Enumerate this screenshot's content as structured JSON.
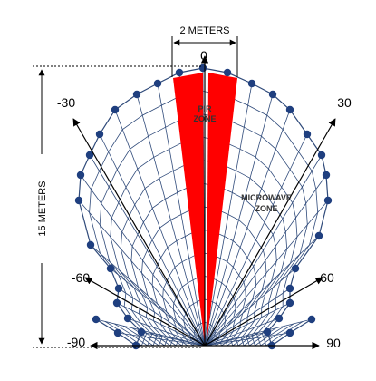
{
  "diagram": {
    "width_label": "2 METERS",
    "range_label": "15 METERS",
    "angle_labels": {
      "a0": "0",
      "a30_left": "-30",
      "a30_right": "30",
      "a60_left": "-60",
      "a60_right": "60",
      "a90_left": "-90",
      "a90_right": "90"
    },
    "pir_zone": {
      "line1": "PIR",
      "line2": "ZONE"
    },
    "microwave_zone": {
      "line1": "MICROWAVE",
      "line2": "ZONE"
    },
    "colors": {
      "grid": "#2f4a7a",
      "dots": "#1f3f7f",
      "pir_fill": "#ff0000",
      "arrows": "#000000"
    }
  }
}
